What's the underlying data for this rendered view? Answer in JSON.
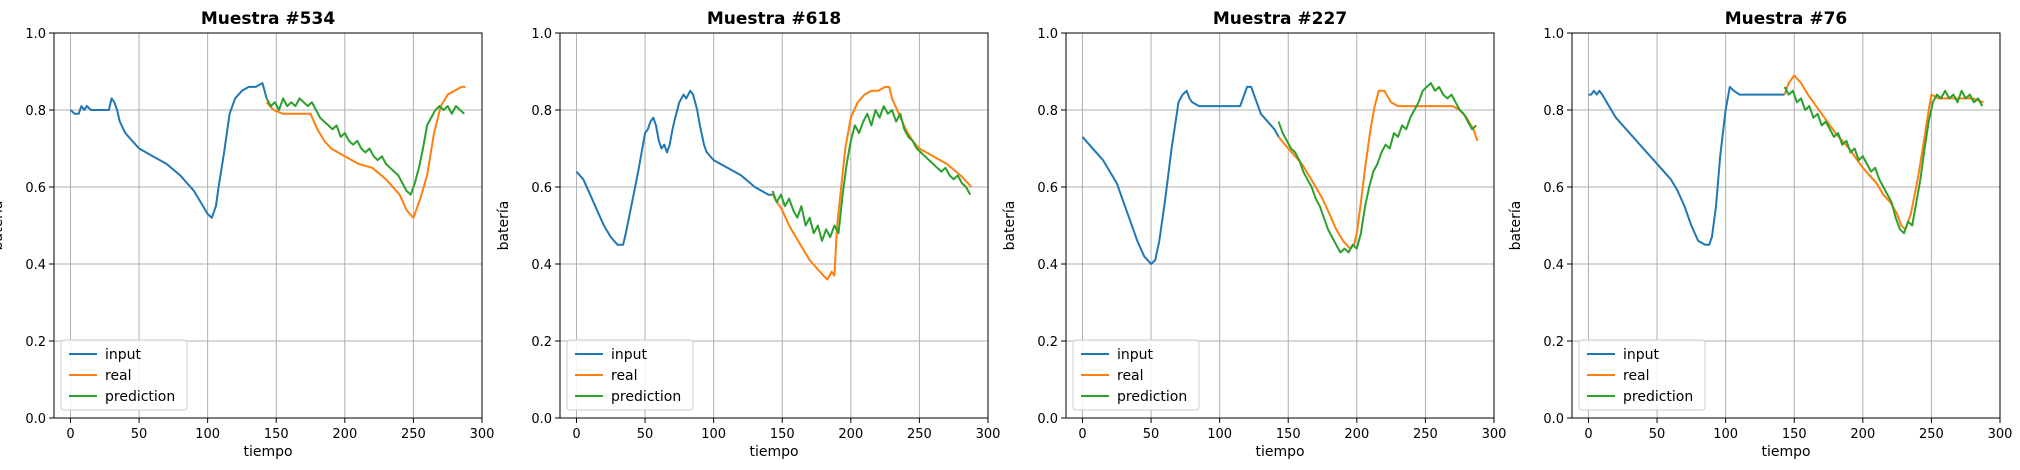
{
  "chart_data": [
    {
      "type": "line",
      "title": "Muestra #534",
      "xlabel": "tiempo",
      "ylabel": "batería",
      "xlim": [
        -12,
        300
      ],
      "ylim": [
        0,
        1
      ],
      "xticks": [
        0,
        50,
        100,
        150,
        200,
        250,
        300
      ],
      "yticks": [
        0.0,
        0.2,
        0.4,
        0.6,
        0.8,
        1.0
      ],
      "grid": true,
      "legend": "lower-left",
      "series": [
        {
          "name": "input",
          "color": "#1f77b4",
          "x": [
            0,
            3,
            6,
            8,
            10,
            12,
            15,
            20,
            25,
            28,
            30,
            32,
            34,
            36,
            40,
            45,
            50,
            60,
            70,
            80,
            90,
            95,
            100,
            103,
            106,
            108,
            112,
            116,
            120,
            125,
            130,
            135,
            140,
            143
          ],
          "y": [
            0.8,
            0.79,
            0.79,
            0.81,
            0.8,
            0.81,
            0.8,
            0.8,
            0.8,
            0.8,
            0.83,
            0.82,
            0.8,
            0.77,
            0.74,
            0.72,
            0.7,
            0.68,
            0.66,
            0.63,
            0.59,
            0.56,
            0.53,
            0.52,
            0.55,
            0.6,
            0.69,
            0.79,
            0.83,
            0.85,
            0.86,
            0.86,
            0.87,
            0.83
          ]
        },
        {
          "name": "real",
          "color": "#ff7f0e",
          "x": [
            143,
            148,
            155,
            160,
            170,
            175,
            180,
            185,
            190,
            200,
            210,
            220,
            230,
            240,
            245,
            250,
            255,
            260,
            265,
            270,
            275,
            280,
            285,
            288
          ],
          "y": [
            0.82,
            0.8,
            0.79,
            0.79,
            0.79,
            0.79,
            0.75,
            0.72,
            0.7,
            0.68,
            0.66,
            0.65,
            0.62,
            0.58,
            0.54,
            0.52,
            0.57,
            0.63,
            0.74,
            0.81,
            0.84,
            0.85,
            0.86,
            0.86
          ]
        },
        {
          "name": "prediction",
          "color": "#2ca02c",
          "x": [
            143,
            146,
            149,
            152,
            155,
            158,
            161,
            164,
            167,
            170,
            173,
            176,
            179,
            182,
            185,
            188,
            191,
            194,
            197,
            200,
            203,
            206,
            209,
            212,
            215,
            218,
            221,
            224,
            227,
            230,
            233,
            236,
            239,
            242,
            245,
            248,
            251,
            254,
            257,
            260,
            263,
            266,
            269,
            272,
            275,
            278,
            281,
            284,
            287
          ],
          "y": [
            0.83,
            0.81,
            0.82,
            0.8,
            0.83,
            0.81,
            0.82,
            0.81,
            0.83,
            0.82,
            0.81,
            0.82,
            0.8,
            0.78,
            0.77,
            0.76,
            0.75,
            0.76,
            0.73,
            0.74,
            0.72,
            0.71,
            0.72,
            0.7,
            0.69,
            0.7,
            0.68,
            0.67,
            0.68,
            0.66,
            0.65,
            0.64,
            0.63,
            0.61,
            0.59,
            0.58,
            0.61,
            0.65,
            0.7,
            0.76,
            0.78,
            0.8,
            0.81,
            0.8,
            0.81,
            0.79,
            0.81,
            0.8,
            0.79
          ]
        }
      ]
    },
    {
      "type": "line",
      "title": "Muestra #618",
      "xlabel": "tiempo",
      "ylabel": "batería",
      "xlim": [
        -12,
        300
      ],
      "ylim": [
        0,
        1
      ],
      "xticks": [
        0,
        50,
        100,
        150,
        200,
        250,
        300
      ],
      "yticks": [
        0.0,
        0.2,
        0.4,
        0.6,
        0.8,
        1.0
      ],
      "grid": true,
      "legend": "lower-left",
      "series": [
        {
          "name": "input",
          "color": "#1f77b4",
          "x": [
            0,
            5,
            10,
            15,
            20,
            25,
            30,
            34,
            36,
            40,
            45,
            48,
            50,
            52,
            54,
            56,
            58,
            60,
            62,
            64,
            66,
            68,
            70,
            72,
            75,
            78,
            80,
            83,
            85,
            88,
            90,
            93,
            95,
            100,
            110,
            120,
            130,
            140,
            143
          ],
          "y": [
            0.64,
            0.62,
            0.58,
            0.54,
            0.5,
            0.47,
            0.45,
            0.45,
            0.48,
            0.55,
            0.64,
            0.7,
            0.74,
            0.75,
            0.77,
            0.78,
            0.76,
            0.72,
            0.7,
            0.71,
            0.69,
            0.71,
            0.75,
            0.78,
            0.82,
            0.84,
            0.83,
            0.85,
            0.84,
            0.8,
            0.76,
            0.71,
            0.69,
            0.67,
            0.65,
            0.63,
            0.6,
            0.58,
            0.58
          ]
        },
        {
          "name": "real",
          "color": "#ff7f0e",
          "x": [
            143,
            150,
            155,
            160,
            165,
            170,
            175,
            180,
            183,
            186,
            188,
            190,
            193,
            196,
            200,
            205,
            210,
            215,
            220,
            225,
            228,
            230,
            235,
            240,
            245,
            250,
            260,
            270,
            280,
            288
          ],
          "y": [
            0.58,
            0.54,
            0.5,
            0.47,
            0.44,
            0.41,
            0.39,
            0.37,
            0.36,
            0.38,
            0.37,
            0.5,
            0.6,
            0.7,
            0.78,
            0.82,
            0.84,
            0.85,
            0.85,
            0.86,
            0.86,
            0.83,
            0.79,
            0.75,
            0.72,
            0.7,
            0.68,
            0.66,
            0.63,
            0.6
          ]
        },
        {
          "name": "prediction",
          "color": "#2ca02c",
          "x": [
            143,
            146,
            149,
            152,
            155,
            158,
            161,
            164,
            167,
            170,
            173,
            176,
            179,
            182,
            185,
            188,
            191,
            194,
            197,
            200,
            203,
            206,
            209,
            212,
            215,
            218,
            221,
            224,
            227,
            230,
            233,
            236,
            239,
            242,
            245,
            248,
            251,
            254,
            257,
            260,
            263,
            266,
            269,
            272,
            275,
            278,
            281,
            284,
            287
          ],
          "y": [
            0.59,
            0.56,
            0.58,
            0.55,
            0.57,
            0.54,
            0.52,
            0.55,
            0.5,
            0.52,
            0.48,
            0.5,
            0.46,
            0.49,
            0.47,
            0.5,
            0.48,
            0.58,
            0.66,
            0.72,
            0.76,
            0.74,
            0.77,
            0.79,
            0.76,
            0.8,
            0.78,
            0.81,
            0.79,
            0.8,
            0.77,
            0.79,
            0.75,
            0.73,
            0.72,
            0.7,
            0.69,
            0.68,
            0.67,
            0.66,
            0.65,
            0.64,
            0.65,
            0.63,
            0.62,
            0.63,
            0.61,
            0.6,
            0.58
          ]
        }
      ]
    },
    {
      "type": "line",
      "title": "Muestra #227",
      "xlabel": "tiempo",
      "ylabel": "batería",
      "xlim": [
        -12,
        300
      ],
      "ylim": [
        0,
        1
      ],
      "xticks": [
        0,
        50,
        100,
        150,
        200,
        250,
        300
      ],
      "yticks": [
        0.0,
        0.2,
        0.4,
        0.6,
        0.8,
        1.0
      ],
      "grid": true,
      "legend": "lower-left",
      "series": [
        {
          "name": "input",
          "color": "#1f77b4",
          "x": [
            0,
            5,
            10,
            15,
            20,
            25,
            30,
            35,
            40,
            45,
            50,
            53,
            56,
            60,
            65,
            70,
            73,
            76,
            78,
            80,
            85,
            90,
            100,
            110,
            115,
            118,
            120,
            123,
            125,
            128,
            130,
            135,
            140,
            143
          ],
          "y": [
            0.73,
            0.71,
            0.69,
            0.67,
            0.64,
            0.61,
            0.56,
            0.51,
            0.46,
            0.42,
            0.4,
            0.41,
            0.46,
            0.56,
            0.7,
            0.82,
            0.84,
            0.85,
            0.83,
            0.82,
            0.81,
            0.81,
            0.81,
            0.81,
            0.81,
            0.84,
            0.86,
            0.86,
            0.84,
            0.81,
            0.79,
            0.77,
            0.75,
            0.73
          ]
        },
        {
          "name": "real",
          "color": "#ff7f0e",
          "x": [
            143,
            150,
            155,
            160,
            165,
            170,
            175,
            180,
            185,
            190,
            195,
            198,
            200,
            203,
            206,
            210,
            213,
            216,
            220,
            225,
            230,
            235,
            240,
            245,
            250,
            260,
            270,
            275,
            280,
            285,
            288
          ],
          "y": [
            0.73,
            0.7,
            0.68,
            0.66,
            0.63,
            0.6,
            0.57,
            0.53,
            0.49,
            0.46,
            0.44,
            0.45,
            0.48,
            0.56,
            0.65,
            0.75,
            0.81,
            0.85,
            0.85,
            0.82,
            0.81,
            0.81,
            0.81,
            0.81,
            0.81,
            0.81,
            0.81,
            0.8,
            0.78,
            0.75,
            0.72
          ]
        },
        {
          "name": "prediction",
          "color": "#2ca02c",
          "x": [
            143,
            146,
            149,
            152,
            155,
            158,
            161,
            164,
            167,
            170,
            173,
            176,
            179,
            182,
            185,
            188,
            191,
            194,
            197,
            200,
            203,
            206,
            209,
            212,
            215,
            218,
            221,
            224,
            227,
            230,
            233,
            236,
            239,
            242,
            245,
            248,
            251,
            254,
            257,
            260,
            263,
            266,
            269,
            272,
            275,
            278,
            281,
            284,
            287
          ],
          "y": [
            0.77,
            0.74,
            0.72,
            0.7,
            0.69,
            0.67,
            0.64,
            0.62,
            0.6,
            0.57,
            0.55,
            0.52,
            0.49,
            0.47,
            0.45,
            0.43,
            0.44,
            0.43,
            0.45,
            0.44,
            0.48,
            0.55,
            0.6,
            0.64,
            0.66,
            0.69,
            0.71,
            0.7,
            0.74,
            0.73,
            0.76,
            0.75,
            0.78,
            0.8,
            0.82,
            0.85,
            0.86,
            0.87,
            0.85,
            0.86,
            0.84,
            0.83,
            0.84,
            0.82,
            0.8,
            0.79,
            0.77,
            0.75,
            0.76
          ]
        }
      ]
    },
    {
      "type": "line",
      "title": "Muestra #76",
      "xlabel": "tiempo",
      "ylabel": "batería",
      "xlim": [
        -12,
        300
      ],
      "ylim": [
        0,
        1
      ],
      "xticks": [
        0,
        50,
        100,
        150,
        200,
        250,
        300
      ],
      "yticks": [
        0.0,
        0.2,
        0.4,
        0.6,
        0.8,
        1.0
      ],
      "grid": true,
      "legend": "lower-left",
      "series": [
        {
          "name": "input",
          "color": "#1f77b4",
          "x": [
            0,
            2,
            4,
            6,
            8,
            10,
            15,
            20,
            30,
            40,
            50,
            60,
            65,
            70,
            75,
            80,
            85,
            88,
            90,
            93,
            96,
            100,
            103,
            106,
            110,
            115,
            120,
            130,
            140,
            143
          ],
          "y": [
            0.84,
            0.84,
            0.85,
            0.84,
            0.85,
            0.84,
            0.81,
            0.78,
            0.74,
            0.7,
            0.66,
            0.62,
            0.59,
            0.55,
            0.5,
            0.46,
            0.45,
            0.45,
            0.47,
            0.55,
            0.68,
            0.8,
            0.86,
            0.85,
            0.84,
            0.84,
            0.84,
            0.84,
            0.84,
            0.84
          ]
        },
        {
          "name": "real",
          "color": "#ff7f0e",
          "x": [
            143,
            146,
            148,
            150,
            155,
            160,
            170,
            180,
            190,
            200,
            210,
            215,
            220,
            225,
            228,
            231,
            235,
            240,
            245,
            248,
            250,
            255,
            260,
            270,
            280,
            288
          ],
          "y": [
            0.84,
            0.87,
            0.88,
            0.89,
            0.87,
            0.84,
            0.79,
            0.74,
            0.7,
            0.65,
            0.61,
            0.58,
            0.56,
            0.53,
            0.5,
            0.49,
            0.53,
            0.62,
            0.73,
            0.8,
            0.84,
            0.83,
            0.83,
            0.83,
            0.83,
            0.82
          ]
        },
        {
          "name": "prediction",
          "color": "#2ca02c",
          "x": [
            143,
            146,
            149,
            152,
            155,
            158,
            161,
            164,
            167,
            170,
            173,
            176,
            179,
            182,
            185,
            188,
            191,
            194,
            197,
            200,
            203,
            206,
            209,
            212,
            215,
            218,
            221,
            224,
            227,
            230,
            233,
            236,
            239,
            242,
            245,
            248,
            251,
            254,
            257,
            260,
            263,
            266,
            269,
            272,
            275,
            278,
            281,
            284,
            287
          ],
          "y": [
            0.86,
            0.84,
            0.85,
            0.82,
            0.83,
            0.8,
            0.81,
            0.78,
            0.79,
            0.76,
            0.77,
            0.75,
            0.73,
            0.74,
            0.71,
            0.72,
            0.69,
            0.7,
            0.67,
            0.68,
            0.66,
            0.64,
            0.65,
            0.62,
            0.6,
            0.58,
            0.56,
            0.52,
            0.49,
            0.48,
            0.51,
            0.5,
            0.56,
            0.62,
            0.7,
            0.77,
            0.82,
            0.84,
            0.83,
            0.85,
            0.83,
            0.84,
            0.82,
            0.85,
            0.83,
            0.84,
            0.82,
            0.83,
            0.81
          ]
        }
      ]
    }
  ]
}
